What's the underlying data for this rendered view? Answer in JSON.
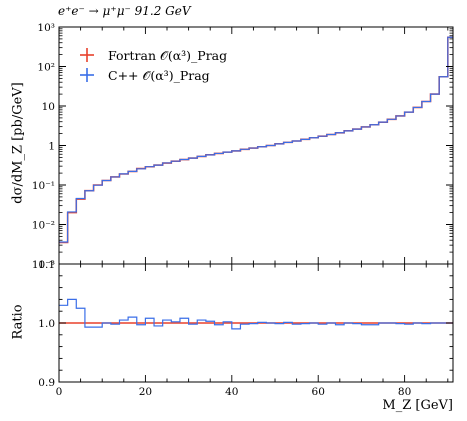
{
  "chart_data": [
    {
      "type": "line",
      "title": "e⁺e⁻ → μ⁺μ⁻ 91.2 GeV",
      "ylabel": "dσ/dM_Z [pb/GeV]",
      "xlabel": "",
      "yscale": "log",
      "xlim": [
        0,
        91.2
      ],
      "ylim": [
        0.001,
        1000
      ],
      "ytick_labels": [
        "10⁻³",
        "10⁻²",
        "10⁻¹",
        "1",
        "10",
        "10²",
        "10³"
      ],
      "legend_position": "top-left",
      "grid": false,
      "series": [
        {
          "name": "Fortran 𝒪(α³)_Prag",
          "color": "#e8412c",
          "bins": [
            0,
            2,
            4,
            6,
            8,
            10,
            12,
            14,
            16,
            18,
            20,
            22,
            24,
            26,
            28,
            30,
            32,
            34,
            36,
            38,
            40,
            42,
            44,
            46,
            48,
            50,
            52,
            54,
            56,
            58,
            60,
            62,
            64,
            66,
            68,
            70,
            72,
            74,
            76,
            78,
            80,
            82,
            84,
            86,
            88,
            90,
            91.2
          ],
          "values": [
            0.0035,
            0.02,
            0.044,
            0.072,
            0.1,
            0.13,
            0.16,
            0.19,
            0.22,
            0.26,
            0.29,
            0.32,
            0.36,
            0.4,
            0.44,
            0.48,
            0.53,
            0.58,
            0.63,
            0.68,
            0.73,
            0.8,
            0.86,
            0.93,
            1.0,
            1.1,
            1.2,
            1.3,
            1.43,
            1.57,
            1.72,
            1.9,
            2.1,
            2.35,
            2.6,
            2.95,
            3.35,
            3.9,
            4.6,
            5.6,
            7.0,
            9.2,
            13,
            20,
            55,
            550
          ]
        },
        {
          "name": "C++ 𝒪(α³)_Prag",
          "color": "#3a6ee8",
          "bins": [
            0,
            2,
            4,
            6,
            8,
            10,
            12,
            14,
            16,
            18,
            20,
            22,
            24,
            26,
            28,
            30,
            32,
            34,
            36,
            38,
            40,
            42,
            44,
            46,
            48,
            50,
            52,
            54,
            56,
            58,
            60,
            62,
            64,
            66,
            68,
            70,
            72,
            74,
            76,
            78,
            80,
            82,
            84,
            86,
            88,
            90,
            91.2
          ],
          "values": [
            0.0036,
            0.0208,
            0.0455,
            0.0715,
            0.099,
            0.13,
            0.16,
            0.191,
            0.221,
            0.257,
            0.291,
            0.318,
            0.362,
            0.401,
            0.443,
            0.479,
            0.53,
            0.58,
            0.63,
            0.679,
            0.73,
            0.8,
            0.862,
            0.928,
            1.0,
            1.1,
            1.2,
            1.3,
            1.43,
            1.57,
            1.72,
            1.9,
            2.1,
            2.35,
            2.6,
            2.95,
            3.35,
            3.9,
            4.6,
            5.6,
            7.0,
            9.2,
            13,
            20,
            55,
            550
          ]
        }
      ]
    },
    {
      "type": "line",
      "title": "",
      "ylabel": "Ratio",
      "xlabel": "M_Z [GeV]",
      "xlim": [
        0,
        91.2
      ],
      "ylim": [
        0.9,
        1.1
      ],
      "xticks": [
        0,
        20,
        40,
        60,
        80
      ],
      "yticks": [
        0.9,
        1.0,
        1.1
      ],
      "ytick_labels": [
        "0.9",
        "1.0",
        "1.1"
      ],
      "grid": false,
      "series": [
        {
          "name": "Fortran 𝒪(α³)_Prag",
          "color": "#e8412c",
          "bins": [
            0,
            91.2
          ],
          "values": [
            1.0
          ]
        },
        {
          "name": "C++ 𝒪(α³)_Prag",
          "color": "#3a6ee8",
          "bins": [
            0,
            2,
            4,
            6,
            8,
            10,
            12,
            14,
            16,
            18,
            20,
            22,
            24,
            26,
            28,
            30,
            32,
            34,
            36,
            38,
            40,
            42,
            44,
            46,
            48,
            50,
            52,
            54,
            56,
            58,
            60,
            62,
            64,
            66,
            68,
            70,
            72,
            74,
            76,
            78,
            80,
            82,
            84,
            86,
            88,
            90,
            91.2
          ],
          "values": [
            1.03,
            1.04,
            1.025,
            0.993,
            0.993,
            1.0,
            0.998,
            1.005,
            1.01,
            0.997,
            1.008,
            0.995,
            1.005,
            1.002,
            1.008,
            0.998,
            1.005,
            1.003,
            0.997,
            1.002,
            0.99,
            0.998,
            0.999,
            1.001,
            1.0,
            0.999,
            1.001,
            0.998,
            0.999,
            1.0,
            0.998,
            1.0,
            0.997,
            1.0,
            0.999,
            0.997,
            0.997,
            1.0,
            1.0,
            0.999,
            0.998,
            1.0,
            0.999,
            1.0,
            1.0,
            1.0
          ]
        }
      ]
    }
  ]
}
